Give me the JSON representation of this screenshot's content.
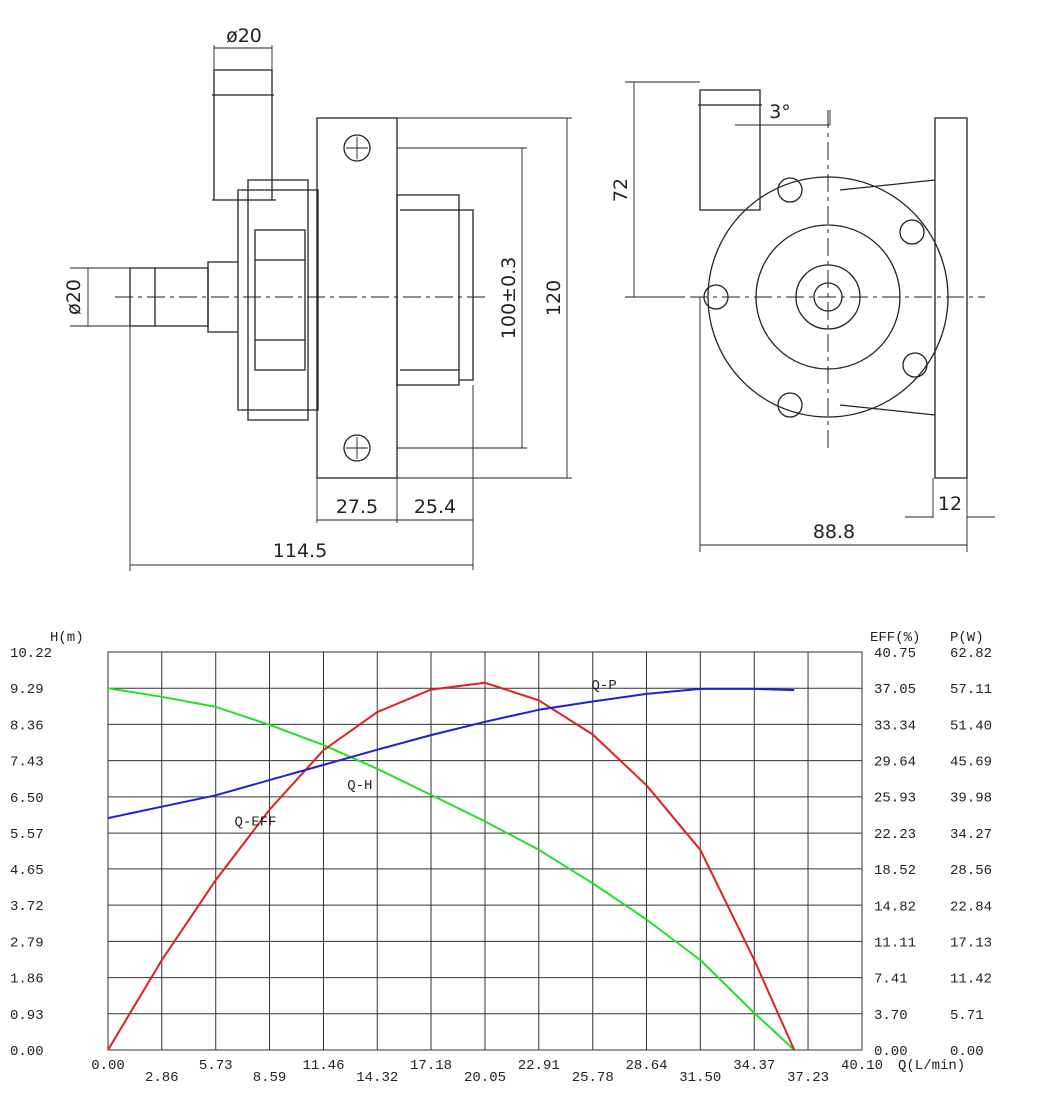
{
  "drawing": {
    "dimensions": [
      "ø20",
      "ø20",
      "27.5",
      "25.4",
      "114.5",
      "100±0.3",
      "120",
      "72",
      "3°",
      "88.8",
      "12"
    ]
  },
  "chart_data": {
    "type": "line",
    "x_label": "Q(L/min)",
    "y_label": "H(m)",
    "y2_label": "EFF(%)",
    "y3_label": "P(W)",
    "x": [
      0,
      2.86,
      5.73,
      8.59,
      11.46,
      14.32,
      17.18,
      20.05,
      22.91,
      25.78,
      28.64,
      31.5,
      34.37,
      36.5
    ],
    "series": [
      {
        "name": "Q-H",
        "color": "#22e022",
        "values": [
          9.29,
          9.07,
          8.81,
          8.35,
          7.83,
          7.22,
          6.55,
          5.87,
          5.14,
          4.28,
          3.35,
          2.31,
          0.95,
          0
        ]
      },
      {
        "name": "Q-EFF",
        "color": "#e02020",
        "axis": "y2",
        "values": [
          0,
          9.2,
          17.4,
          24.6,
          30.7,
          34.6,
          36.9,
          37.6,
          35.8,
          32.3,
          27.1,
          20.5,
          9.2,
          0
        ]
      },
      {
        "name": "Q-P",
        "color": "#2020d0",
        "axis": "y3",
        "values": [
          36.6,
          38.4,
          40.2,
          42.6,
          45.0,
          47.4,
          49.7,
          51.8,
          53.7,
          55.0,
          56.2,
          57.0,
          57.0,
          56.8
        ]
      }
    ],
    "xlim": [
      0,
      40.1
    ],
    "xticks": [
      {
        "value": 0,
        "label": "0.00"
      },
      2.86,
      5.73,
      8.59,
      11.46,
      14.32,
      17.18,
      20.05,
      22.91,
      25.78,
      28.64,
      {
        "value": 31.5,
        "label": "31.50"
      },
      34.37,
      37.23,
      {
        "value": 40.1,
        "label": "40.10"
      }
    ],
    "ylim": [
      0,
      10.22
    ],
    "yticks": [
      {
        "value": 0,
        "label": "0.00"
      },
      0.93,
      1.86,
      2.79,
      3.72,
      4.65,
      5.57,
      {
        "value": 6.5,
        "label": "6.50"
      },
      7.43,
      8.36,
      9.29,
      10.22
    ],
    "y2lim": [
      0,
      40.75
    ],
    "y2ticks": [
      {
        "value": 0,
        "label": "0.00"
      },
      {
        "value": 3.7,
        "label": "3.70"
      },
      7.41,
      11.11,
      14.82,
      18.52,
      22.23,
      25.93,
      29.64,
      33.34,
      37.05,
      40.75
    ],
    "y3lim": [
      0,
      62.82
    ],
    "y3ticks": [
      {
        "value": 0,
        "label": "0.00"
      },
      5.71,
      11.42,
      17.13,
      22.84,
      28.56,
      34.27,
      39.98,
      45.69,
      {
        "value": 51.4,
        "label": "51.40"
      },
      57.11,
      62.82
    ],
    "grid": true
  }
}
